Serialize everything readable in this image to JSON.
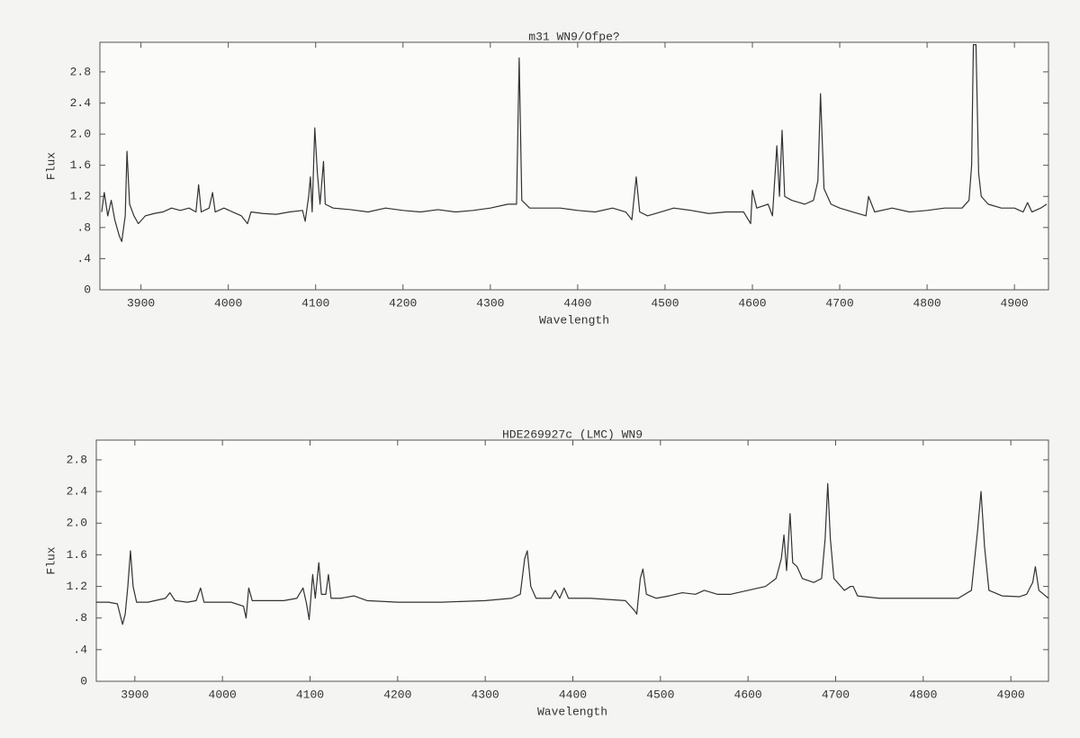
{
  "chart_data": [
    {
      "type": "line",
      "title": "m31 WN9/Ofpe?",
      "xlabel": "Wavelength",
      "ylabel": "Flux",
      "color": "#333333",
      "xlim": [
        3853,
        4939
      ],
      "ylim": [
        0,
        3.18
      ],
      "xticks": [
        3900,
        4000,
        4100,
        4200,
        4300,
        4400,
        4500,
        4600,
        4700,
        4800,
        4900
      ],
      "yticks": [
        0,
        {
          "value": 0.4,
          "label": ".4"
        },
        {
          "value": 0.8,
          "label": ".8"
        },
        1.2,
        1.6,
        {
          "value": 2,
          "label": "2.0"
        },
        2.4,
        2.8
      ],
      "x": [
        3855,
        3858,
        3862,
        3866,
        3870,
        3875,
        3878,
        3882,
        3884,
        3887,
        3892,
        3897,
        3905,
        3915,
        3925,
        3935,
        3945,
        3955,
        3963,
        3966,
        3969,
        3978,
        3982,
        3985,
        3995,
        4005,
        4015,
        4022,
        4026,
        4040,
        4055,
        4070,
        4085,
        4088,
        4092,
        4094,
        4096,
        4099,
        4102,
        4105,
        4109,
        4111,
        4120,
        4140,
        4160,
        4180,
        4200,
        4220,
        4240,
        4260,
        4280,
        4300,
        4320,
        4330,
        4333,
        4336,
        4345,
        4360,
        4380,
        4400,
        4420,
        4440,
        4455,
        4462,
        4467,
        4471,
        4480,
        4495,
        4510,
        4530,
        4550,
        4570,
        4590,
        4598,
        4600,
        4605,
        4618,
        4623,
        4628,
        4631,
        4634,
        4637,
        4645,
        4660,
        4670,
        4675,
        4678,
        4682,
        4690,
        4700,
        4715,
        4730,
        4733,
        4740,
        4760,
        4780,
        4800,
        4820,
        4840,
        4848,
        4851,
        4853,
        4856,
        4859,
        4862,
        4870,
        4885,
        4900,
        4910,
        4915,
        4920,
        4930,
        4937
      ],
      "values": [
        1.0,
        1.25,
        0.95,
        1.15,
        0.9,
        0.7,
        0.62,
        0.95,
        1.78,
        1.1,
        0.95,
        0.85,
        0.95,
        0.98,
        1.0,
        1.05,
        1.02,
        1.05,
        1.0,
        1.35,
        1.0,
        1.05,
        1.25,
        1.0,
        1.05,
        1.0,
        0.95,
        0.85,
        1.0,
        0.98,
        0.97,
        1.0,
        1.02,
        0.88,
        1.2,
        1.45,
        1.0,
        2.08,
        1.5,
        1.1,
        1.65,
        1.1,
        1.05,
        1.03,
        1.0,
        1.05,
        1.02,
        1.0,
        1.03,
        1.0,
        1.02,
        1.05,
        1.1,
        1.1,
        2.98,
        1.15,
        1.05,
        1.05,
        1.05,
        1.02,
        1.0,
        1.05,
        1.0,
        0.9,
        1.45,
        1.0,
        0.95,
        1.0,
        1.05,
        1.02,
        0.98,
        1.0,
        1.0,
        0.85,
        1.28,
        1.05,
        1.1,
        0.95,
        1.85,
        1.2,
        2.05,
        1.2,
        1.15,
        1.1,
        1.15,
        1.4,
        2.52,
        1.3,
        1.1,
        1.05,
        1.0,
        0.95,
        1.2,
        1.0,
        1.05,
        1.0,
        1.02,
        1.05,
        1.05,
        1.15,
        1.6,
        3.15,
        3.15,
        1.5,
        1.2,
        1.1,
        1.05,
        1.05,
        1.0,
        1.12,
        1.0,
        1.05,
        1.1
      ]
    },
    {
      "type": "line",
      "title": "HDE269927c (LMC) WN9",
      "xlabel": "Wavelength",
      "ylabel": "Flux",
      "color": "#333333",
      "xlim": [
        3856,
        4943
      ],
      "ylim": [
        0,
        3.05
      ],
      "xticks": [
        3900,
        4000,
        4100,
        4200,
        4300,
        4400,
        4500,
        4600,
        4700,
        4800,
        4900
      ],
      "yticks": [
        0,
        {
          "value": 0.4,
          "label": ".4"
        },
        {
          "value": 0.8,
          "label": ".8"
        },
        1.2,
        1.6,
        {
          "value": 2,
          "label": "2.0"
        },
        2.4,
        2.8
      ],
      "x": [
        3856,
        3870,
        3880,
        3886,
        3889,
        3892,
        3895,
        3898,
        3902,
        3915,
        3935,
        3940,
        3946,
        3960,
        3970,
        3975,
        3979,
        3995,
        4010,
        4024,
        4027,
        4030,
        4034,
        4050,
        4070,
        4085,
        4092,
        4096,
        4099,
        4103,
        4106,
        4110,
        4113,
        4118,
        4121,
        4124,
        4135,
        4150,
        4165,
        4200,
        4250,
        4300,
        4330,
        4340,
        4345,
        4348,
        4352,
        4358,
        4375,
        4380,
        4385,
        4390,
        4395,
        4420,
        4460,
        4470,
        4473,
        4477,
        4480,
        4484,
        4495,
        4510,
        4525,
        4540,
        4550,
        4565,
        4580,
        4600,
        4620,
        4632,
        4638,
        4641,
        4644,
        4648,
        4651,
        4656,
        4662,
        4675,
        4684,
        4688,
        4691,
        4694,
        4698,
        4710,
        4717,
        4720,
        4725,
        4750,
        4800,
        4840,
        4855,
        4862,
        4866,
        4870,
        4875,
        4890,
        4910,
        4918,
        4925,
        4928,
        4932,
        4943
      ],
      "values": [
        1.0,
        1.0,
        0.98,
        0.72,
        0.85,
        1.2,
        1.65,
        1.2,
        1.0,
        1.0,
        1.05,
        1.12,
        1.02,
        1.0,
        1.02,
        1.18,
        1.0,
        1.0,
        1.0,
        0.95,
        0.8,
        1.18,
        1.02,
        1.02,
        1.02,
        1.05,
        1.18,
        0.98,
        0.78,
        1.35,
        1.05,
        1.5,
        1.1,
        1.1,
        1.35,
        1.05,
        1.05,
        1.08,
        1.02,
        1.0,
        1.0,
        1.02,
        1.05,
        1.1,
        1.55,
        1.65,
        1.2,
        1.05,
        1.05,
        1.15,
        1.05,
        1.18,
        1.05,
        1.05,
        1.02,
        0.9,
        0.85,
        1.3,
        1.42,
        1.1,
        1.05,
        1.08,
        1.12,
        1.1,
        1.15,
        1.1,
        1.1,
        1.15,
        1.2,
        1.3,
        1.55,
        1.85,
        1.4,
        2.12,
        1.5,
        1.45,
        1.3,
        1.25,
        1.3,
        1.8,
        2.5,
        1.8,
        1.3,
        1.15,
        1.2,
        1.2,
        1.08,
        1.05,
        1.05,
        1.05,
        1.15,
        1.9,
        2.4,
        1.7,
        1.15,
        1.08,
        1.07,
        1.1,
        1.25,
        1.45,
        1.15,
        1.05
      ]
    }
  ]
}
